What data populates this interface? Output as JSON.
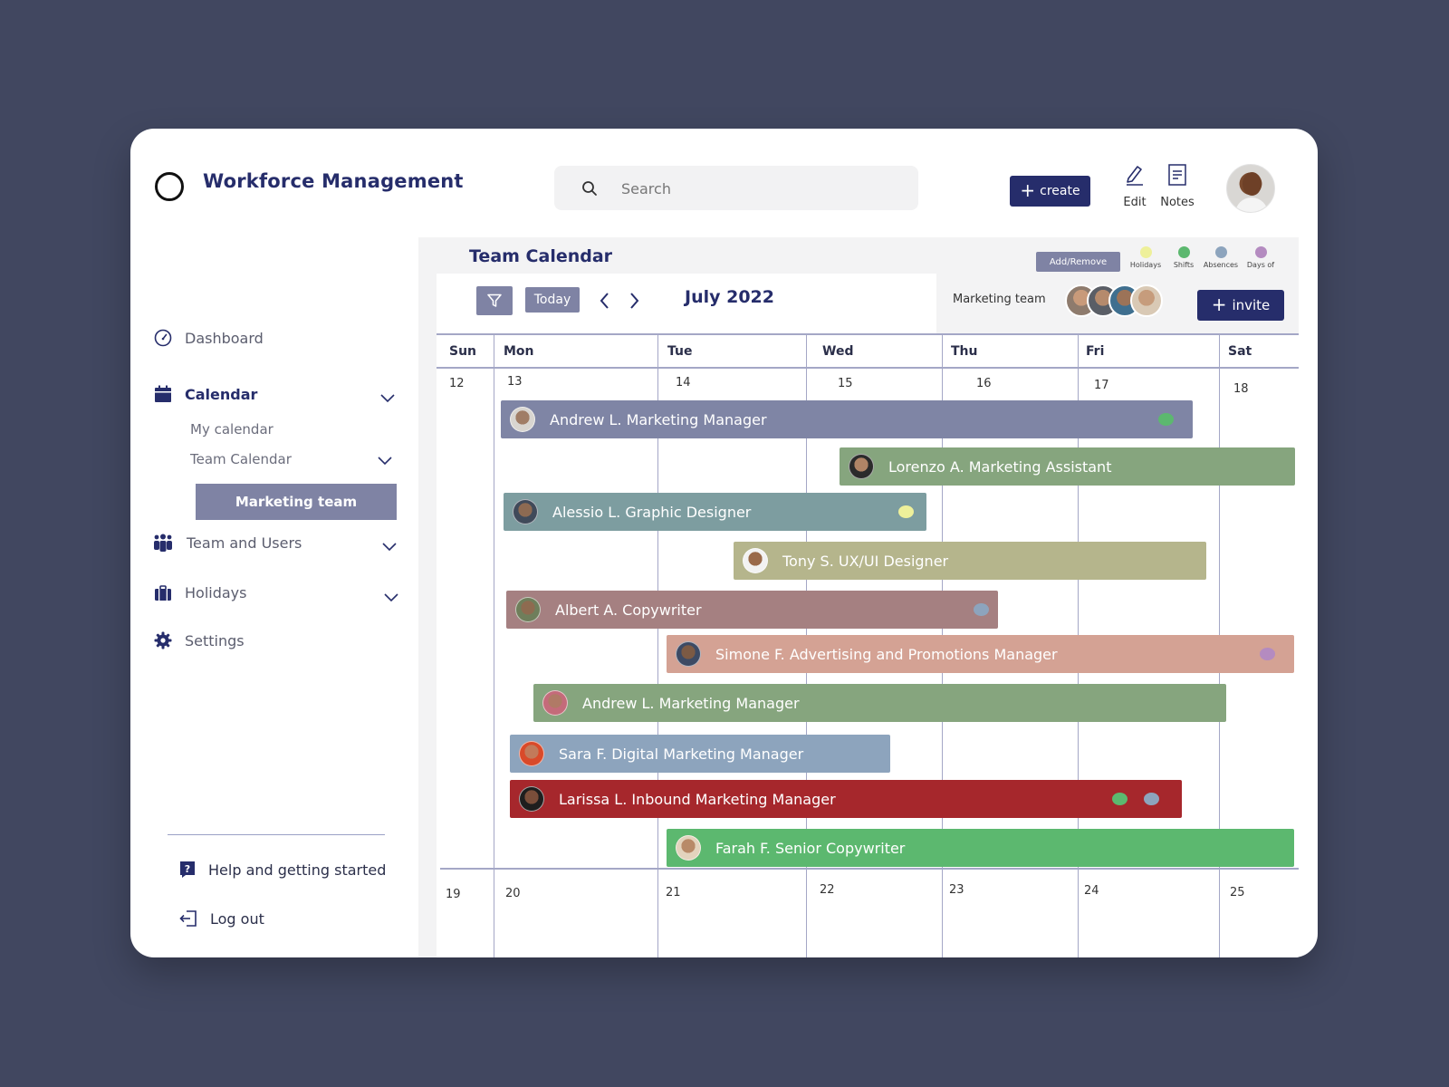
{
  "header": {
    "app_title": "Workforce Management",
    "search_placeholder": "Search",
    "create_label": "create",
    "edit_label": "Edit",
    "notes_label": "Notes"
  },
  "sidebar": {
    "dashboard": "Dashboard",
    "calendar": "Calendar",
    "my_calendar": "My calendar",
    "team_calendar": "Team Calendar",
    "marketing_team": "Marketing team",
    "team_users": "Team and Users",
    "holidays": "Holidays",
    "settings": "Settings",
    "help": "Help and getting started",
    "logout": "Log out"
  },
  "main": {
    "title": "Team Calendar",
    "add_remove": "Add/Remove",
    "legend": [
      {
        "label": "Holidays",
        "color": "#eef09a"
      },
      {
        "label": "Shifts",
        "color": "#5cb86f"
      },
      {
        "label": "Absences",
        "color": "#8da4bd"
      },
      {
        "label": "Days of",
        "color": "#b48bc0"
      }
    ],
    "today_label": "Today",
    "month": "July 2022",
    "team_label": "Marketing team",
    "invite_label": "invite"
  },
  "calendar": {
    "days": [
      "Sun",
      "Mon",
      "Tue",
      "Wed",
      "Thu",
      "Fri",
      "Sat"
    ],
    "week1": [
      "12",
      "13",
      "14",
      "15",
      "16",
      "17",
      "18"
    ],
    "week2": [
      "19",
      "20",
      "21",
      "22",
      "23",
      "24",
      "25"
    ],
    "events": [
      {
        "label": "Andrew L. Marketing Manager",
        "color": "#7f85a5",
        "tags": [
          "#5cb86f"
        ]
      },
      {
        "label": "Lorenzo A. Marketing Assistant",
        "color": "#86a57e",
        "tags": []
      },
      {
        "label": "Alessio L. Graphic Designer",
        "color": "#7d9da0",
        "tags": [
          "#eef09a"
        ]
      },
      {
        "label": "Tony S. UX/UI Designer",
        "color": "#b5b58c",
        "tags": []
      },
      {
        "label": "Albert A. Copywriter",
        "color": "#a58081",
        "tags": [
          "#8da4bd"
        ]
      },
      {
        "label": "Simone F. Advertising and Promotions Manager",
        "color": "#d4a294",
        "tags": [
          "#b48bc0"
        ]
      },
      {
        "label": "Andrew L. Marketing Manager",
        "color": "#86a57e",
        "tags": []
      },
      {
        "label": "Sara F. Digital Marketing Manager",
        "color": "#8da4bd",
        "tags": []
      },
      {
        "label": "Larissa L. Inbound Marketing Manager",
        "color": "#a6272c",
        "tags": [
          "#5cb86f",
          "#8da4bd"
        ]
      },
      {
        "label": "Farah F. Senior Copywriter",
        "color": "#5cb86f",
        "tags": []
      }
    ]
  }
}
